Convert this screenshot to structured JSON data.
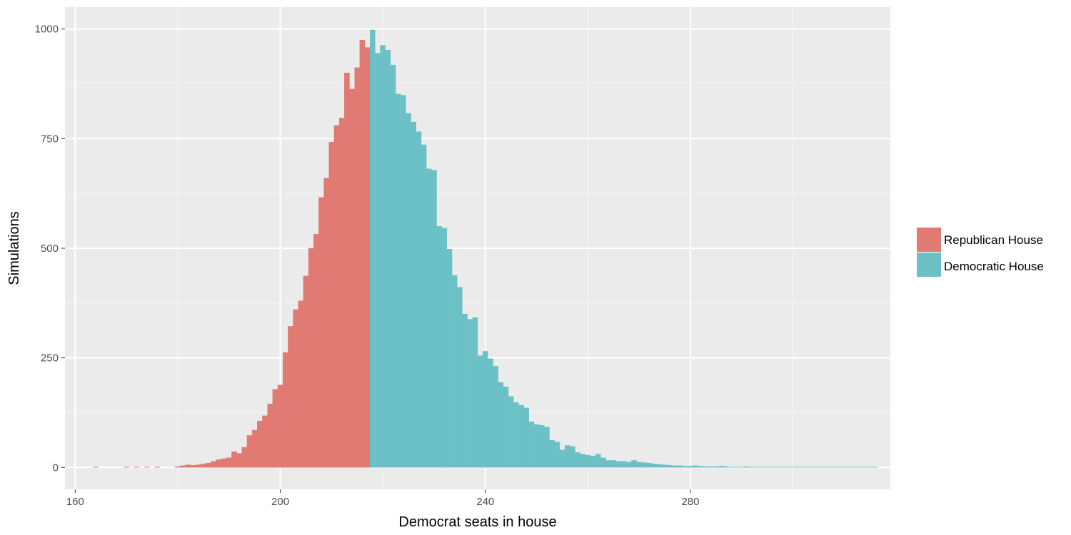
{
  "chart_data": {
    "type": "bar",
    "title": "",
    "xlabel": "Democrat seats in house",
    "ylabel": "Simulations",
    "xlim": [
      158,
      319
    ],
    "ylim": [
      -50,
      1050
    ],
    "xticks": [
      160,
      200,
      240,
      280
    ],
    "yticks": [
      0,
      250,
      500,
      750,
      1000
    ],
    "grid": true,
    "legend_position": "right",
    "colors": {
      "Republican House": "#E07A72",
      "Democratic House": "#6CC1C6"
    },
    "series": [
      {
        "name": "Republican House",
        "x": [
          164,
          170,
          172,
          174,
          176,
          180,
          181,
          182,
          183,
          184,
          185,
          186,
          187,
          188,
          189,
          190,
          191,
          192,
          193,
          194,
          195,
          196,
          197,
          198,
          199,
          200,
          201,
          202,
          203,
          204,
          205,
          206,
          207,
          208,
          209,
          210,
          211,
          212,
          213,
          214,
          215,
          216,
          217
        ],
        "values": [
          1,
          1,
          1,
          1,
          1,
          2,
          4,
          6,
          5,
          6,
          8,
          10,
          14,
          18,
          20,
          22,
          36,
          32,
          46,
          73,
          85,
          106,
          118,
          145,
          178,
          188,
          262,
          322,
          360,
          380,
          437,
          500,
          532,
          616,
          660,
          742,
          780,
          797,
          900,
          863,
          912,
          975,
          958
        ]
      },
      {
        "name": "Democratic House",
        "x": [
          218,
          219,
          220,
          221,
          222,
          223,
          224,
          225,
          226,
          227,
          228,
          229,
          230,
          231,
          232,
          233,
          234,
          235,
          236,
          237,
          238,
          239,
          240,
          241,
          242,
          243,
          244,
          245,
          246,
          247,
          248,
          249,
          250,
          251,
          252,
          253,
          254,
          255,
          256,
          257,
          258,
          259,
          260,
          261,
          262,
          263,
          264,
          265,
          266,
          267,
          268,
          269,
          270,
          271,
          272,
          273,
          274,
          275,
          276,
          277,
          278,
          279,
          280,
          281,
          282,
          283,
          284,
          285,
          286,
          287,
          288,
          289,
          290,
          291,
          292,
          293,
          294,
          295,
          296,
          297,
          298,
          299,
          300,
          301,
          302,
          303,
          304,
          305,
          306,
          307,
          308,
          309,
          310,
          311,
          312,
          313,
          314,
          315,
          316
        ],
        "values": [
          998,
          945,
          963,
          952,
          918,
          852,
          849,
          808,
          788,
          766,
          736,
          681,
          678,
          550,
          546,
          498,
          438,
          411,
          350,
          338,
          342,
          255,
          265,
          248,
          231,
          194,
          184,
          162,
          148,
          142,
          136,
          104,
          98,
          96,
          92,
          62,
          58,
          40,
          50,
          48,
          34,
          30,
          28,
          26,
          30,
          22,
          16,
          16,
          14,
          14,
          12,
          16,
          12,
          11,
          10,
          8,
          7,
          6,
          5,
          4,
          4,
          3,
          3,
          4,
          3,
          2,
          2,
          2,
          3,
          2,
          1,
          1,
          1,
          2,
          1,
          1,
          1,
          1,
          1,
          1,
          1,
          1,
          1,
          1,
          1,
          1,
          1,
          1,
          1,
          1,
          1,
          1,
          1,
          1,
          1,
          1,
          1,
          1,
          1
        ]
      }
    ]
  }
}
